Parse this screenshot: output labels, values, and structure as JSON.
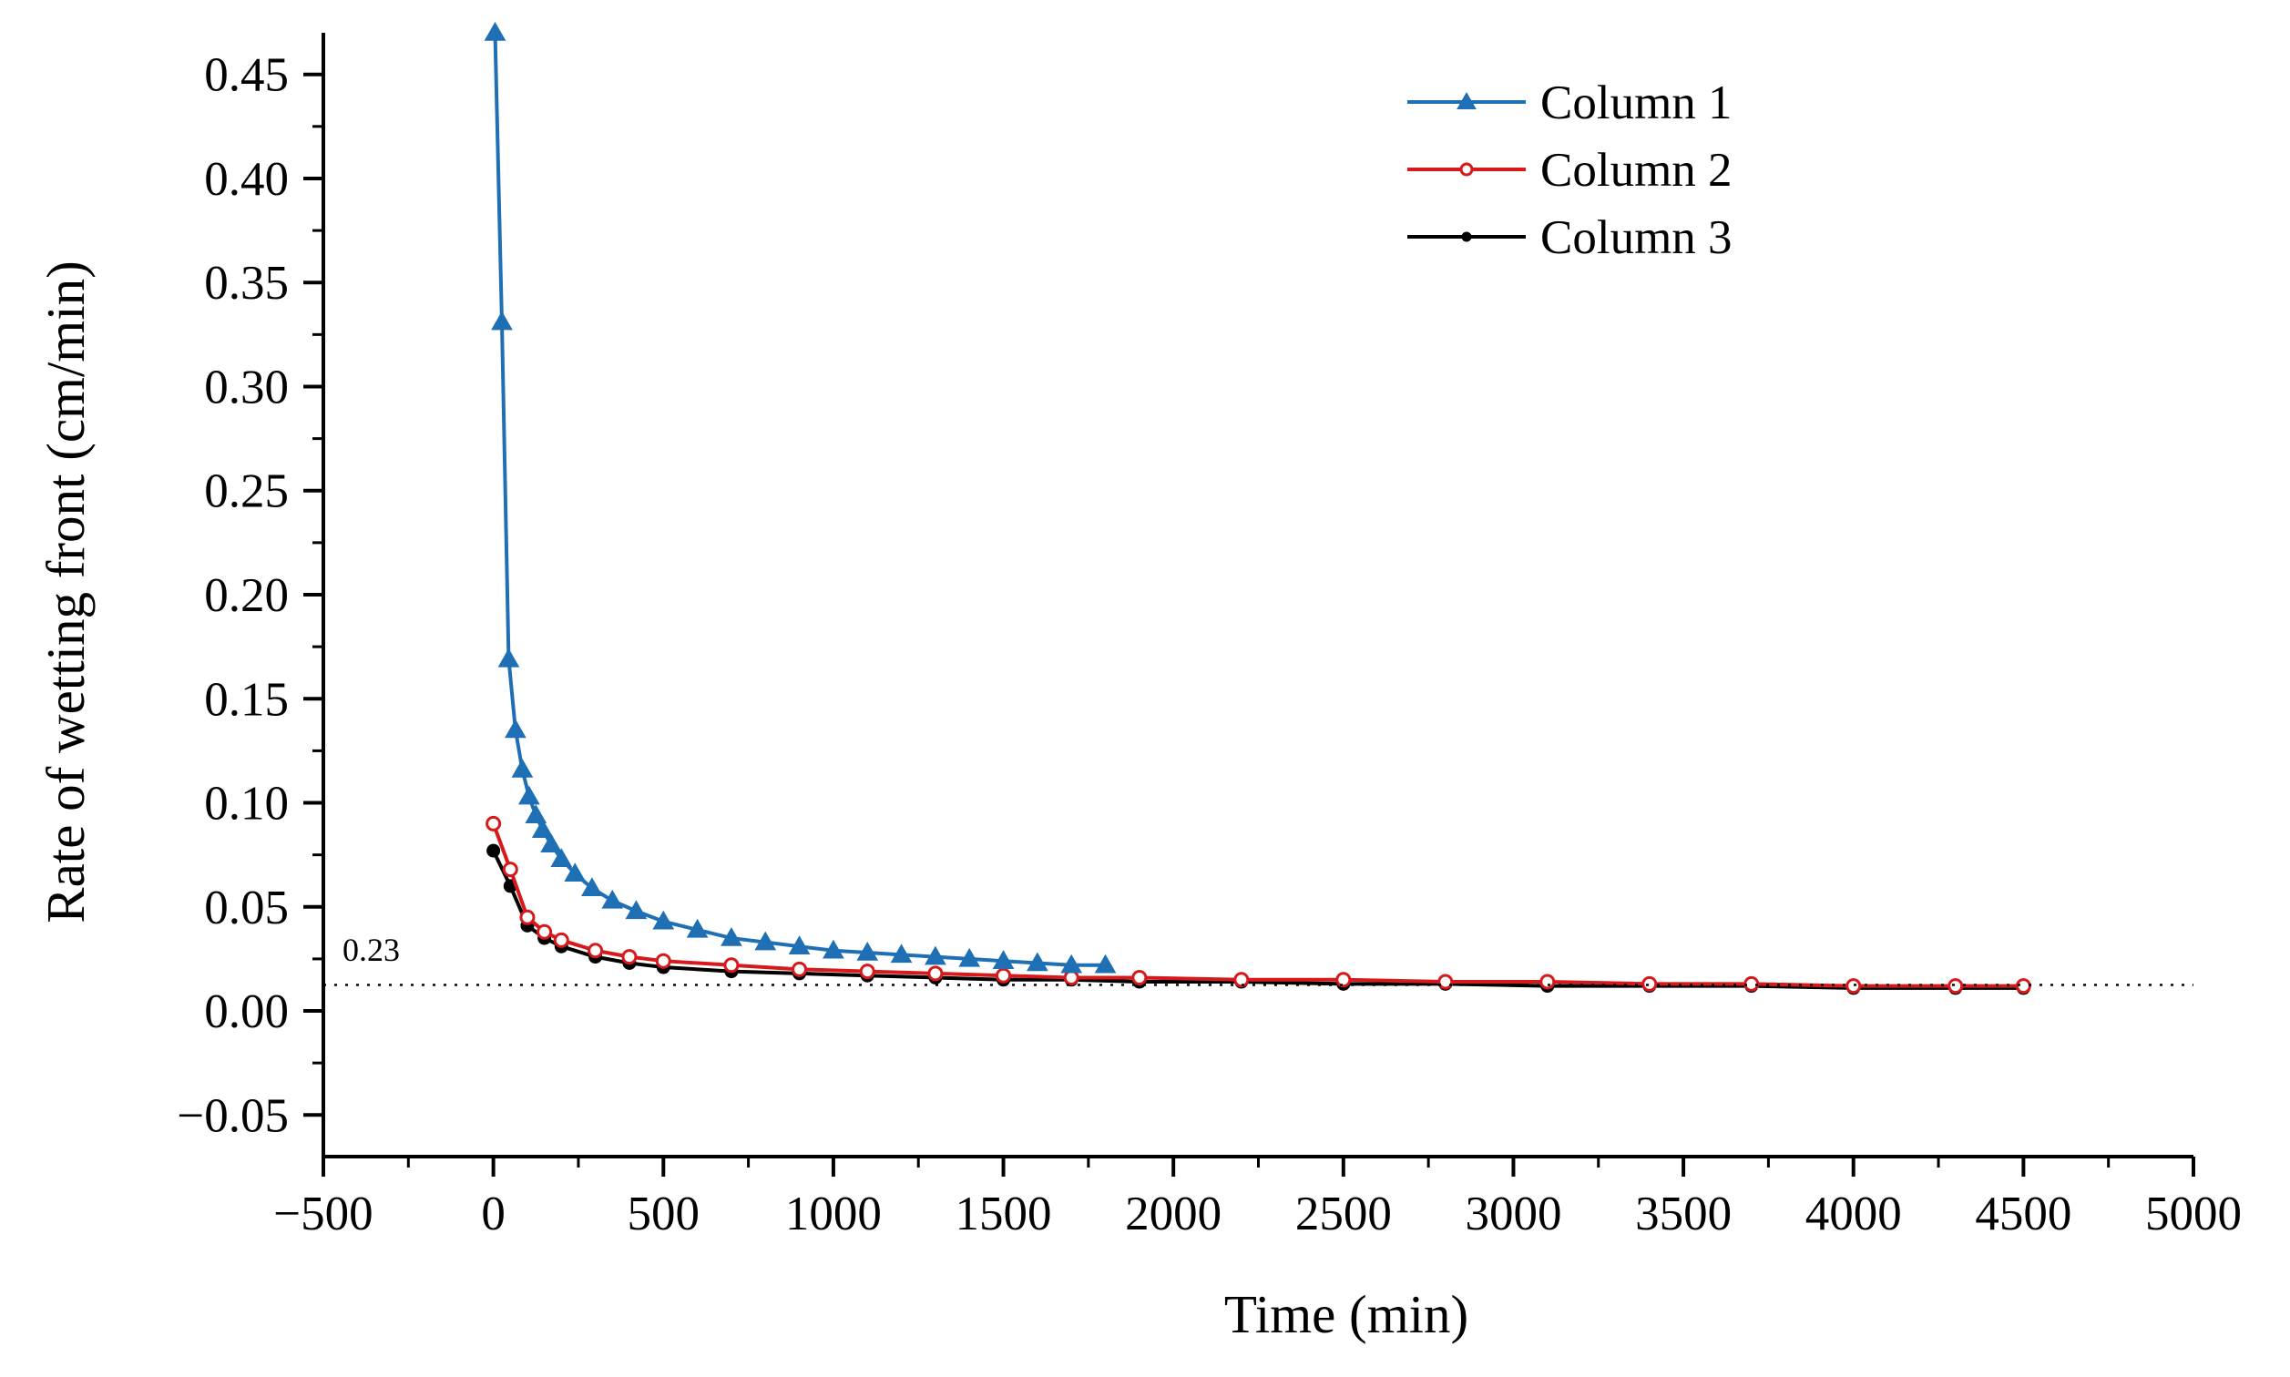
{
  "chart_data": {
    "type": "line",
    "title": "",
    "xlabel": "Time (min)",
    "ylabel": "Rate of wetting front (cm/min)",
    "xlim": [
      -500,
      5000
    ],
    "ylim": [
      -0.07,
      0.47
    ],
    "xticks": [
      -500,
      0,
      500,
      1000,
      1500,
      2000,
      2500,
      3000,
      3500,
      4000,
      4500,
      5000
    ],
    "yticks": [
      -0.05,
      0.0,
      0.05,
      0.1,
      0.15,
      0.2,
      0.25,
      0.3,
      0.35,
      0.4,
      0.45
    ],
    "xtick_labels": [
      "−500",
      "0",
      "500",
      "1000",
      "1500",
      "2000",
      "2500",
      "3000",
      "3500",
      "4000",
      "4500",
      "5000"
    ],
    "ytick_labels": [
      "−0.05",
      "0.00",
      "0.05",
      "0.10",
      "0.15",
      "0.20",
      "0.25",
      "0.30",
      "0.35",
      "0.40",
      "0.45"
    ],
    "grid": false,
    "legend_position": "top-right",
    "annotation": {
      "label": "0.23",
      "y": 0.0125,
      "style": "dotted horizontal reference line"
    },
    "series": [
      {
        "name": "Column 1",
        "color": "#1f6fb5",
        "marker": "triangle",
        "x": [
          5,
          25,
          45,
          65,
          85,
          105,
          125,
          145,
          170,
          200,
          240,
          290,
          350,
          420,
          500,
          600,
          700,
          800,
          900,
          1000,
          1100,
          1200,
          1300,
          1400,
          1500,
          1600,
          1700,
          1800
        ],
        "y": [
          0.47,
          0.331,
          0.169,
          0.135,
          0.116,
          0.103,
          0.094,
          0.087,
          0.08,
          0.073,
          0.066,
          0.059,
          0.053,
          0.048,
          0.043,
          0.039,
          0.035,
          0.033,
          0.031,
          0.029,
          0.028,
          0.027,
          0.026,
          0.025,
          0.024,
          0.023,
          0.022,
          0.022
        ]
      },
      {
        "name": "Column 2",
        "color": "#d7191c",
        "marker": "open-circle",
        "x": [
          0,
          50,
          100,
          150,
          200,
          300,
          400,
          500,
          700,
          900,
          1100,
          1300,
          1500,
          1700,
          1900,
          2200,
          2500,
          2800,
          3100,
          3400,
          3700,
          4000,
          4300,
          4500
        ],
        "y": [
          0.09,
          0.068,
          0.045,
          0.038,
          0.034,
          0.029,
          0.026,
          0.024,
          0.022,
          0.02,
          0.019,
          0.018,
          0.017,
          0.016,
          0.016,
          0.015,
          0.015,
          0.014,
          0.014,
          0.013,
          0.013,
          0.012,
          0.012,
          0.012
        ]
      },
      {
        "name": "Column 3",
        "color": "#000000",
        "marker": "filled-circle",
        "x": [
          0,
          50,
          100,
          150,
          200,
          300,
          400,
          500,
          700,
          900,
          1100,
          1300,
          1500,
          1700,
          1900,
          2200,
          2500,
          2800,
          3100,
          3400,
          3700,
          4000,
          4300,
          4500
        ],
        "y": [
          0.077,
          0.06,
          0.041,
          0.035,
          0.031,
          0.026,
          0.023,
          0.021,
          0.019,
          0.018,
          0.017,
          0.016,
          0.015,
          0.015,
          0.014,
          0.014,
          0.013,
          0.013,
          0.012,
          0.012,
          0.012,
          0.011,
          0.011,
          0.011
        ]
      }
    ]
  }
}
